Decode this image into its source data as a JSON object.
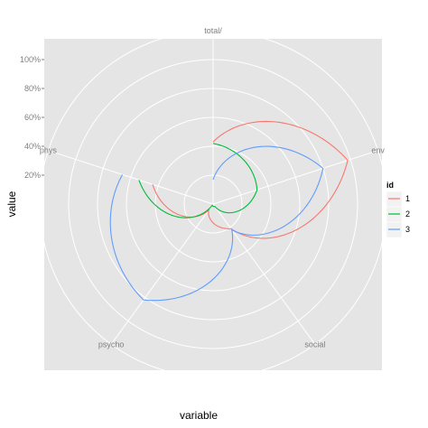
{
  "chart_data": {
    "type": "line",
    "coord": "polar",
    "xlabel": "variable",
    "ylabel": "value",
    "categories": [
      "total/",
      "env",
      "social",
      "psycho",
      "phys"
    ],
    "y_ticks": [
      "20%",
      "40%",
      "60%",
      "80%",
      "100%"
    ],
    "legend": {
      "title": "id",
      "position": "right",
      "labels": [
        "1",
        "2",
        "3"
      ]
    },
    "series": [
      {
        "name": "1",
        "color": "#F8766D",
        "values": [
          0.43,
          0.98,
          0.21,
          0.05,
          0.44
        ]
      },
      {
        "name": "2",
        "color": "#00BA38",
        "values": [
          0.42,
          0.32,
          0.02,
          0.01,
          0.54
        ]
      },
      {
        "name": "3",
        "color": "#619CFF",
        "values": [
          0.17,
          0.8,
          0.22,
          0.82,
          0.66
        ]
      }
    ],
    "grid": true,
    "background": "#E5E5E5",
    "grid_color": "#FFFFFF"
  }
}
